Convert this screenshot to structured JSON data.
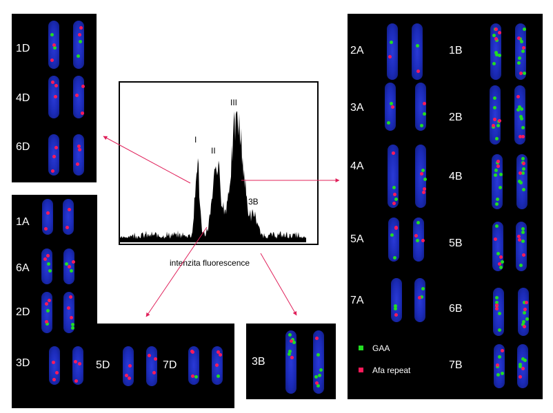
{
  "histogram": {
    "peaks": [
      "I",
      "II",
      "III",
      "3B"
    ],
    "x_caption": "intenzita fluorescence"
  },
  "chromosomes": {
    "panel_d_top": [
      "1D",
      "4D",
      "6D"
    ],
    "panel_mixed": [
      "1A",
      "6A",
      "2D",
      "3D",
      "5D",
      "7D"
    ],
    "panel_3b": [
      "3B"
    ],
    "panel_ab_left": [
      "2A",
      "3A",
      "4A",
      "5A",
      "7A"
    ],
    "panel_ab_right": [
      "1B",
      "2B",
      "4B",
      "5B",
      "6B",
      "7B"
    ]
  },
  "legend": {
    "items": [
      {
        "label": "GAA",
        "color": "#22dd22"
      },
      {
        "label": "Afa repeat",
        "color": "#ff1a5a"
      }
    ]
  },
  "colors": {
    "chromosome": "#1f2fc0",
    "gaa": "#22dd22",
    "afa": "#ff1a5a",
    "arrow": "#e0205a"
  }
}
